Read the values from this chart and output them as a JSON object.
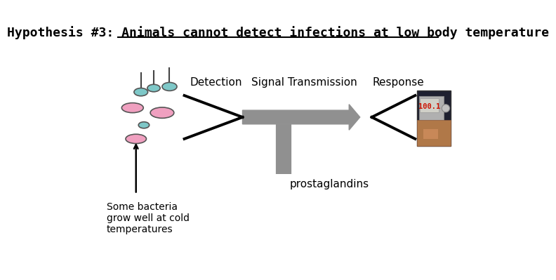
{
  "title": "Hypothesis #3: Animals cannot detect infections at low body temperature",
  "title_fontsize": 13,
  "background_color": "#ffffff",
  "label_detection": "Detection",
  "label_signal": "Signal Transmission",
  "label_response": "Response",
  "label_prostaglandins": "prostaglandins",
  "label_bacteria": "Some bacteria\ngrow well at cold\ntemperatures",
  "arrow_color": "#808080",
  "line_color": "#000000",
  "ellipse_colors_teal": "#7ec8c8",
  "ellipse_colors_pink": "#f0a0c0",
  "arrow_shaft_color": "#909090"
}
